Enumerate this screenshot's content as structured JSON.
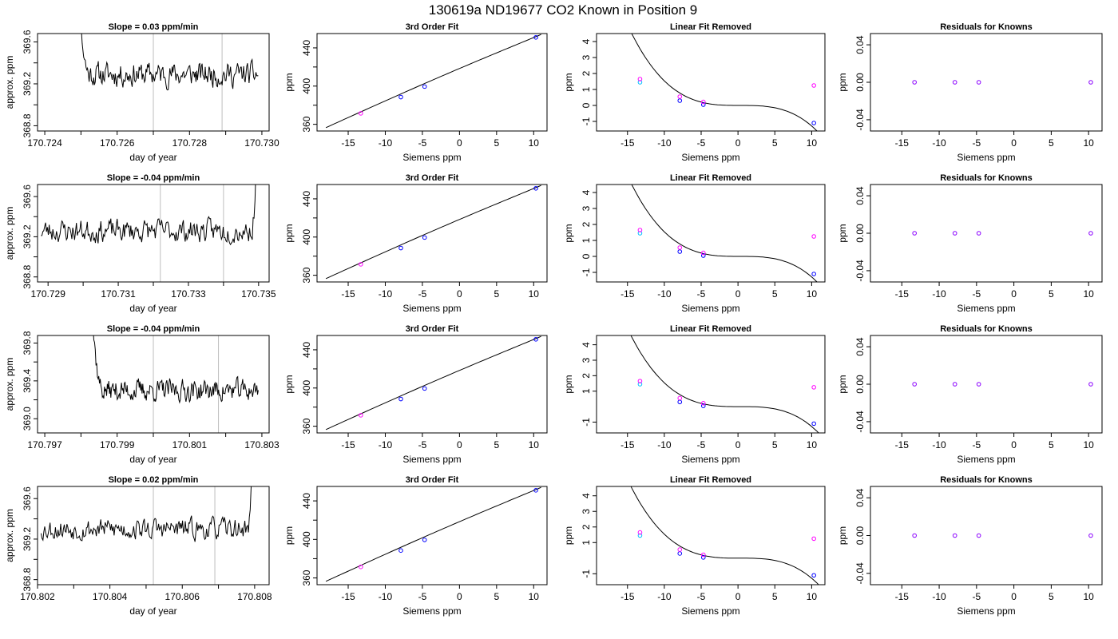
{
  "figure": {
    "title": "130619a     ND19677    CO2 Known in Position  9",
    "colors": {
      "line": "#000000",
      "vline": "#bebebe",
      "blue": "#0000ff",
      "cyan": "#00bfff",
      "magenta": "#ff00ff",
      "purple": "#8b00ff"
    }
  },
  "chart_data": [
    {
      "type": "line",
      "title": "Slope =  0.03  ppm/min",
      "xlabel": "day of year",
      "ylabel": "approx. ppm",
      "xlim": [
        170.7238,
        170.7302
      ],
      "ylim": [
        368.75,
        369.68
      ],
      "xticks": [
        170.724,
        170.725,
        170.726,
        170.727,
        170.728,
        170.729,
        170.73
      ],
      "xtick_labels": [
        "170.724",
        "",
        "170.726",
        "",
        "170.728",
        "",
        "170.730"
      ],
      "yticks": [
        368.8,
        369.0,
        369.2,
        369.4,
        369.6
      ],
      "ytick_labels": [
        "368.8",
        "",
        "369.2",
        "",
        "369.6"
      ],
      "vlines": [
        170.727,
        170.7289
      ],
      "x_start": 170.7248,
      "x_end": 170.7299,
      "baseline": 369.29,
      "noise": 0.12,
      "rise": "start",
      "seed": 11
    },
    {
      "type": "line",
      "title": "3rd Order Fit",
      "xlabel": "Siemens ppm",
      "ylabel": "ppm"
    },
    {
      "type": "scatter",
      "title": "Linear Fit Removed",
      "xlabel": "Siemens ppm",
      "ylabel": "ppm"
    },
    {
      "type": "scatter",
      "title": "Residuals for Knowns",
      "xlabel": "Siemens ppm",
      "ylabel": "ppm"
    },
    {
      "type": "line",
      "title": "Slope =  -0.04  ppm/min",
      "xlabel": "day of year",
      "ylabel": "approx. ppm",
      "xlim": [
        170.7287,
        170.7353
      ],
      "ylim": [
        368.75,
        369.72
      ],
      "xticks": [
        170.729,
        170.73,
        170.731,
        170.732,
        170.733,
        170.734,
        170.735
      ],
      "xtick_labels": [
        "170.729",
        "",
        "170.731",
        "",
        "170.733",
        "",
        "170.735"
      ],
      "yticks": [
        368.8,
        369.0,
        369.2,
        369.4,
        369.6
      ],
      "ytick_labels": [
        "368.8",
        "",
        "369.2",
        "",
        "369.6"
      ],
      "vlines": [
        170.7322,
        170.734
      ],
      "x_start": 170.7288,
      "x_end": 170.735,
      "baseline": 369.26,
      "noise": 0.12,
      "rise": "end",
      "seed": 23
    },
    {
      "type": "line",
      "title": "3rd Order Fit",
      "xlabel": "Siemens ppm",
      "ylabel": "ppm"
    },
    {
      "type": "scatter",
      "title": "Linear Fit Removed",
      "xlabel": "Siemens ppm",
      "ylabel": "ppm"
    },
    {
      "type": "scatter",
      "title": "Residuals for Knowns",
      "xlabel": "Siemens ppm",
      "ylabel": "ppm"
    },
    {
      "type": "line",
      "title": "Slope =  -0.04  ppm/min",
      "xlabel": "day of year",
      "ylabel": "approx. ppm",
      "xlim": [
        170.7968,
        170.8032
      ],
      "ylim": [
        368.85,
        369.88
      ],
      "xticks": [
        170.797,
        170.798,
        170.799,
        170.8,
        170.801,
        170.802,
        170.803
      ],
      "xtick_labels": [
        "170.797",
        "",
        "170.799",
        "",
        "170.801",
        "",
        "170.803"
      ],
      "yticks": [
        369.0,
        369.2,
        369.4,
        369.6,
        369.8
      ],
      "ytick_labels": [
        "369.0",
        "",
        "369.4",
        "",
        "369.8"
      ],
      "vlines": [
        170.8,
        170.8018
      ],
      "x_start": 170.7982,
      "x_end": 170.8029,
      "baseline": 369.3,
      "noise": 0.12,
      "rise": "start",
      "seed": 37
    },
    {
      "type": "line",
      "title": "3rd Order Fit",
      "xlabel": "Siemens ppm",
      "ylabel": "ppm"
    },
    {
      "type": "scatter",
      "title": "Linear Fit Removed",
      "xlabel": "Siemens ppm",
      "ylabel": "ppm"
    },
    {
      "type": "scatter",
      "title": "Residuals for Knowns",
      "xlabel": "Siemens ppm",
      "ylabel": "ppm"
    },
    {
      "type": "line",
      "title": "Slope =  0.02  ppm/min",
      "xlabel": "day of year",
      "ylabel": "approx. ppm",
      "xlim": [
        170.802,
        170.8084
      ],
      "ylim": [
        368.75,
        369.72
      ],
      "xticks": [
        170.802,
        170.803,
        170.804,
        170.805,
        170.806,
        170.807,
        170.808
      ],
      "xtick_labels": [
        "170.802",
        "",
        "170.804",
        "",
        "170.806",
        "",
        "170.808"
      ],
      "yticks": [
        368.8,
        369.0,
        369.2,
        369.4,
        369.6
      ],
      "ytick_labels": [
        "368.8",
        "",
        "369.2",
        "",
        "369.6"
      ],
      "vlines": [
        170.8052,
        170.8069
      ],
      "x_start": 170.8021,
      "x_end": 170.808,
      "baseline": 369.3,
      "noise": 0.11,
      "rise": "end",
      "seed": 53
    },
    {
      "type": "line",
      "title": "3rd Order Fit",
      "xlabel": "Siemens ppm",
      "ylabel": "ppm"
    },
    {
      "type": "scatter",
      "title": "Linear Fit Removed",
      "xlabel": "Siemens ppm",
      "ylabel": "ppm"
    },
    {
      "type": "scatter",
      "title": "Residuals for Knowns",
      "xlabel": "Siemens ppm",
      "ylabel": "ppm"
    }
  ],
  "shared_panels": {
    "siemens_xlim": [
      -19.2,
      11.8
    ],
    "siemens_xticks": [
      -15,
      -10,
      -5,
      0,
      5,
      10
    ],
    "siemens_xtick_labels": [
      "-15",
      "-10",
      "-5",
      "0",
      "5",
      "10"
    ],
    "fit3": {
      "ylim": [
        353,
        455
      ],
      "yticks": [
        360,
        380,
        400,
        420,
        440
      ],
      "ytick_labels": [
        "360",
        "",
        "400",
        "",
        "440"
      ],
      "curve": {
        "x0": -18.0,
        "y0": 356.5,
        "x1": 11.0,
        "y1": 454.0,
        "bend": 1.5
      },
      "points": [
        {
          "x": -13.3,
          "y": 371.5,
          "color": "magenta"
        },
        {
          "x": -7.9,
          "y": 388.5,
          "color": "blue"
        },
        {
          "x": -4.7,
          "y": 399.5,
          "color": "blue"
        },
        {
          "x": 10.3,
          "y": 451.0,
          "color": "blue"
        }
      ]
    },
    "linfit": [
      {
        "ylim": [
          -1.6,
          4.5
        ],
        "yticks": [
          -1,
          0,
          1,
          2,
          3,
          4
        ],
        "ytick_labels": [
          "-1",
          "0",
          "1",
          "2",
          "3",
          "4"
        ]
      },
      {
        "ylim": [
          -1.6,
          4.5
        ],
        "yticks": [
          -1,
          0,
          1,
          2,
          3,
          4
        ],
        "ytick_labels": [
          "-1",
          "0",
          "1",
          "2",
          "3",
          "4"
        ]
      },
      {
        "ylim": [
          -1.7,
          4.6
        ],
        "yticks": [
          -1,
          1,
          2,
          3,
          4
        ],
        "ytick_labels": [
          "-1",
          "1",
          "2",
          "3",
          "4"
        ]
      },
      {
        "ylim": [
          -1.7,
          4.6
        ],
        "yticks": [
          -1,
          1,
          2,
          3,
          4
        ],
        "ytick_labels": [
          "-1",
          "1",
          "2",
          "3",
          "4"
        ]
      }
    ],
    "linfit_curve": {
      "a": -0.00141,
      "x_from": -18.0,
      "x_to": 11.0,
      "y_offset": 0.0
    },
    "linfit_points": [
      {
        "x": -13.3,
        "y": 1.45,
        "color": "cyan"
      },
      {
        "x": -13.3,
        "y": 1.65,
        "color": "magenta"
      },
      {
        "x": -7.9,
        "y": 0.3,
        "color": "blue"
      },
      {
        "x": -7.9,
        "y": 0.55,
        "color": "magenta"
      },
      {
        "x": -4.7,
        "y": 0.05,
        "color": "blue"
      },
      {
        "x": -4.7,
        "y": 0.22,
        "color": "magenta"
      },
      {
        "x": 10.3,
        "y": -1.1,
        "color": "blue"
      },
      {
        "x": 10.3,
        "y": 1.25,
        "color": "magenta"
      }
    ],
    "resid": {
      "ylim": [
        -0.052,
        0.052
      ],
      "yticks": [
        -0.04,
        0.0,
        0.04
      ],
      "ytick_labels": [
        "-0.04",
        "0.00",
        "0.04"
      ],
      "points": [
        {
          "x": -13.3,
          "y": 0.0,
          "color": "purple"
        },
        {
          "x": -7.9,
          "y": 0.0,
          "color": "purple"
        },
        {
          "x": -4.7,
          "y": 0.0,
          "color": "purple"
        },
        {
          "x": 10.3,
          "y": 0.0,
          "color": "purple"
        }
      ]
    }
  }
}
